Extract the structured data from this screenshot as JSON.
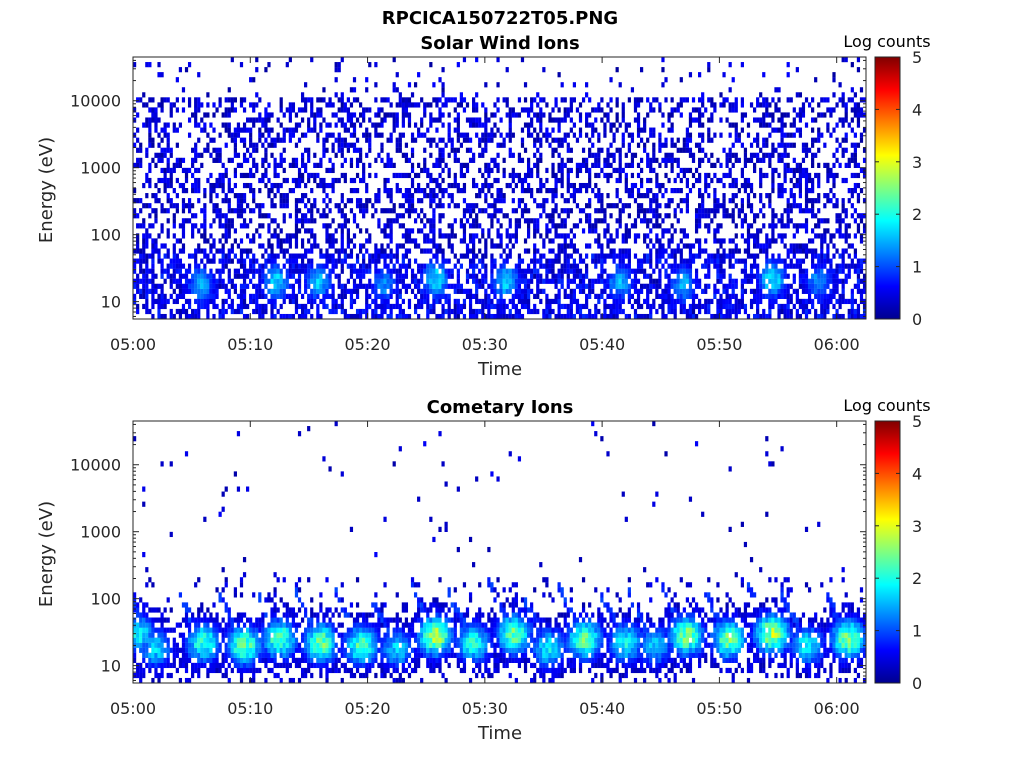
{
  "figure": {
    "title": "RPCICA150722T05.PNG"
  },
  "chart_data": [
    {
      "type": "heatmap",
      "id": "solar",
      "title": "Solar Wind Ions",
      "xlabel": "Time",
      "ylabel": "Energy (eV)",
      "x_ticks": [
        "05:00",
        "05:10",
        "05:20",
        "05:30",
        "05:40",
        "05:50",
        "06:00"
      ],
      "y_ticks": [
        "10",
        "100",
        "1000",
        "10000"
      ],
      "y_tick_values": [
        10,
        100,
        1000,
        10000
      ],
      "yscale": "log",
      "ylim": [
        5.5,
        45000
      ],
      "xlim_minutes": [
        0,
        62.5
      ],
      "colorbar": {
        "label": "Log counts",
        "ticks": [
          "0",
          "1",
          "2",
          "3",
          "4",
          "5"
        ],
        "range": [
          0,
          5
        ]
      },
      "colormap": "jet",
      "description_of_values": "sparse noise 0-1 log counts across all energies; enhanced 1-2 log counts below 50 eV",
      "peaks": [
        {
          "t": 5.8,
          "e": 18,
          "v": 1.6
        },
        {
          "t": 12.2,
          "e": 20,
          "v": 1.8
        },
        {
          "t": 15.8,
          "e": 20,
          "v": 1.7
        },
        {
          "t": 21.4,
          "e": 18,
          "v": 1.4
        },
        {
          "t": 25.8,
          "e": 22,
          "v": 1.9
        },
        {
          "t": 31.8,
          "e": 20,
          "v": 1.8
        },
        {
          "t": 41.5,
          "e": 20,
          "v": 1.6
        },
        {
          "t": 46.9,
          "e": 18,
          "v": 1.6
        },
        {
          "t": 54.5,
          "e": 22,
          "v": 2.0
        },
        {
          "t": 58.5,
          "e": 20,
          "v": 1.5
        }
      ]
    },
    {
      "type": "heatmap",
      "id": "cometary",
      "title": "Cometary Ions",
      "xlabel": "Time",
      "ylabel": "Energy (eV)",
      "x_ticks": [
        "05:00",
        "05:10",
        "05:20",
        "05:30",
        "05:40",
        "05:50",
        "06:00"
      ],
      "y_ticks": [
        "10",
        "100",
        "1000",
        "10000"
      ],
      "y_tick_values": [
        10,
        100,
        1000,
        10000
      ],
      "yscale": "log",
      "ylim": [
        5.5,
        45000
      ],
      "xlim_minutes": [
        0,
        62.5
      ],
      "colorbar": {
        "label": "Log counts",
        "ticks": [
          "0",
          "1",
          "2",
          "3",
          "4",
          "5"
        ],
        "range": [
          0,
          5
        ]
      },
      "colormap": "jet",
      "description_of_values": "bursts of 1.5-3 log counts at 15-40 eV with streaks rising to ~200 eV; scattered single counts above 300 eV",
      "peaks": [
        {
          "t": 0.5,
          "e": 30,
          "v": 2.0
        },
        {
          "t": 2.0,
          "e": 18,
          "v": 1.8
        },
        {
          "t": 6.0,
          "e": 22,
          "v": 2.3
        },
        {
          "t": 9.5,
          "e": 20,
          "v": 2.6
        },
        {
          "t": 12.5,
          "e": 25,
          "v": 2.5
        },
        {
          "t": 16.0,
          "e": 22,
          "v": 2.6
        },
        {
          "t": 19.5,
          "e": 20,
          "v": 2.4
        },
        {
          "t": 22.5,
          "e": 18,
          "v": 1.8
        },
        {
          "t": 25.8,
          "e": 28,
          "v": 2.9
        },
        {
          "t": 29.0,
          "e": 22,
          "v": 2.2
        },
        {
          "t": 32.5,
          "e": 30,
          "v": 2.6
        },
        {
          "t": 35.5,
          "e": 18,
          "v": 2.0
        },
        {
          "t": 38.5,
          "e": 25,
          "v": 2.6
        },
        {
          "t": 42.0,
          "e": 22,
          "v": 2.1
        },
        {
          "t": 44.5,
          "e": 20,
          "v": 1.8
        },
        {
          "t": 47.2,
          "e": 28,
          "v": 2.7
        },
        {
          "t": 50.8,
          "e": 25,
          "v": 2.6
        },
        {
          "t": 54.5,
          "e": 30,
          "v": 2.9
        },
        {
          "t": 57.5,
          "e": 20,
          "v": 2.0
        },
        {
          "t": 61.0,
          "e": 25,
          "v": 2.7
        }
      ]
    }
  ]
}
